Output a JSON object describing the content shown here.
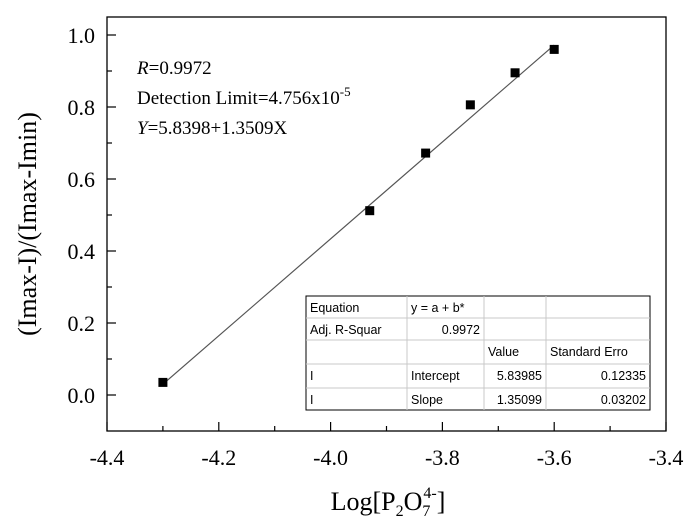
{
  "chart_data": {
    "type": "scatter",
    "title": "",
    "xlabel": {
      "main": "Log[P",
      "sub1": "2",
      "mid": "O",
      "sub2": "7",
      "sup": "4-",
      "end": "]"
    },
    "ylabel": "(Imax-I)/(Imax-Imin)",
    "xlim": [
      -4.4,
      -3.4
    ],
    "ylim": [
      -0.1,
      1.05
    ],
    "xticks": [
      -4.4,
      -4.2,
      -4.0,
      -3.8,
      -3.6,
      -3.4
    ],
    "xtick_labels": [
      "-4.4",
      "-4.2",
      "-4.0",
      "-3.8",
      "-3.6",
      "-3.4"
    ],
    "yticks": [
      0.0,
      0.2,
      0.4,
      0.6,
      0.8,
      1.0
    ],
    "ytick_labels": [
      "0.0",
      "0.2",
      "0.4",
      "0.6",
      "0.8",
      "1.0"
    ],
    "grid": false,
    "points": {
      "x": [
        -4.3,
        -3.93,
        -3.83,
        -3.75,
        -3.67,
        -3.6
      ],
      "y": [
        0.035,
        0.512,
        0.672,
        0.806,
        0.895,
        0.96
      ]
    },
    "fit_line": {
      "x": [
        -4.3,
        -3.6
      ],
      "y": [
        0.03,
        0.972
      ]
    },
    "annotations": {
      "r_symbol": "R",
      "r_value": "=0.9972",
      "detection_text": "Detection Limit=4.756x10",
      "detection_exp": "-5",
      "eq_symbol": "Y",
      "eq_text": "=5.8398+1.3509X"
    },
    "fit_table": {
      "rows": [
        [
          "Equation",
          "y = a + b*",
          "",
          ""
        ],
        [
          "Adj. R-Squar",
          "0.9972",
          "",
          ""
        ],
        [
          "",
          "",
          "Value",
          "Standard Erro"
        ],
        [
          "I",
          "Intercept",
          "5.83985",
          "0.12335"
        ],
        [
          "I",
          "Slope",
          "1.35099",
          "0.03202"
        ]
      ]
    }
  }
}
